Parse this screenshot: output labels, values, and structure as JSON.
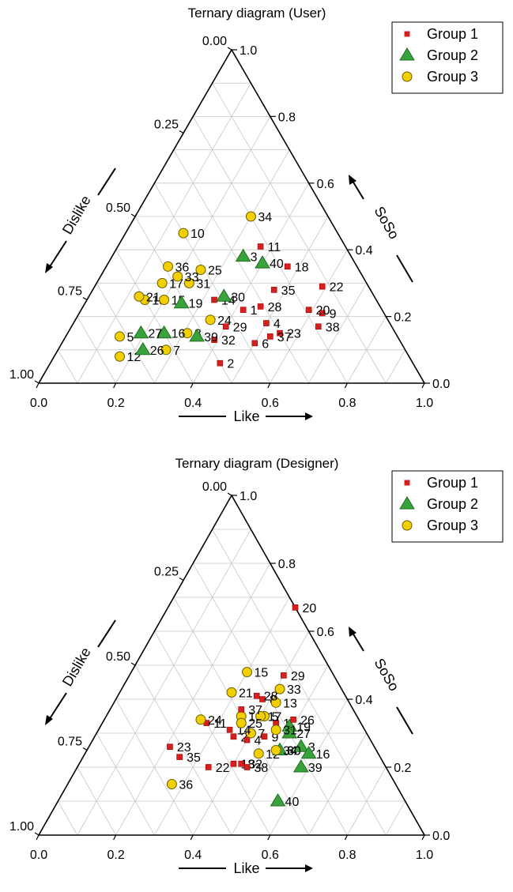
{
  "legend_labels": [
    "Group 1",
    "Group 2",
    "Group 3"
  ],
  "colors": {
    "group1": "#d62020",
    "group2": "#3aa23a",
    "group3": "#f2d000"
  },
  "ticks": {
    "bottom": [
      "0.0",
      "0.2",
      "0.4",
      "0.6",
      "0.8",
      "1.0"
    ],
    "right": [
      "0.0",
      "0.2",
      "0.4",
      "0.6",
      "0.8",
      "1.0"
    ],
    "left": [
      "0.00",
      "0.25",
      "0.50",
      "0.75",
      "1.00"
    ]
  },
  "axis_labels": {
    "bottom": "Like",
    "left": "Dislike",
    "right": "SoSo"
  },
  "chart_data": [
    {
      "type": "scatter",
      "subtype": "ternary",
      "title": "Ternary diagram (User)",
      "axes": [
        "Like",
        "Dislike",
        "SoSo"
      ],
      "points": [
        {
          "label": "1",
          "group": 1,
          "like": 0.42,
          "dislike": 0.36,
          "soso": 0.22
        },
        {
          "label": "2",
          "group": 1,
          "like": 0.44,
          "dislike": 0.5,
          "soso": 0.06
        },
        {
          "label": "3",
          "group": 2,
          "like": 0.34,
          "dislike": 0.28,
          "soso": 0.38
        },
        {
          "label": "4",
          "group": 1,
          "like": 0.5,
          "dislike": 0.32,
          "soso": 0.18
        },
        {
          "label": "5",
          "group": 3,
          "like": 0.14,
          "dislike": 0.72,
          "soso": 0.14
        },
        {
          "label": "6",
          "group": 1,
          "like": 0.5,
          "dislike": 0.38,
          "soso": 0.12
        },
        {
          "label": "7",
          "group": 3,
          "like": 0.28,
          "dislike": 0.62,
          "soso": 0.1
        },
        {
          "label": "8",
          "group": 3,
          "like": 0.31,
          "dislike": 0.54,
          "soso": 0.15
        },
        {
          "label": "9",
          "group": 1,
          "like": 0.63,
          "dislike": 0.16,
          "soso": 0.21
        },
        {
          "label": "10",
          "group": 3,
          "like": 0.15,
          "dislike": 0.4,
          "soso": 0.45
        },
        {
          "label": "11",
          "group": 1,
          "like": 0.37,
          "dislike": 0.22,
          "soso": 0.41
        },
        {
          "label": "12",
          "group": 3,
          "like": 0.17,
          "dislike": 0.75,
          "soso": 0.08
        },
        {
          "label": "13",
          "group": 3,
          "like": 0.15,
          "dislike": 0.6,
          "soso": 0.25
        },
        {
          "label": "14",
          "group": 1,
          "like": 0.33,
          "dislike": 0.42,
          "soso": 0.25
        },
        {
          "label": "15",
          "group": 3,
          "like": 0.2,
          "dislike": 0.55,
          "soso": 0.25
        },
        {
          "label": "16",
          "group": 2,
          "like": 0.25,
          "dislike": 0.6,
          "soso": 0.15
        },
        {
          "label": "17",
          "group": 3,
          "like": 0.17,
          "dislike": 0.53,
          "soso": 0.3
        },
        {
          "label": "18",
          "group": 1,
          "like": 0.47,
          "dislike": 0.18,
          "soso": 0.35
        },
        {
          "label": "19",
          "group": 2,
          "like": 0.25,
          "dislike": 0.51,
          "soso": 0.24
        },
        {
          "label": "20",
          "group": 1,
          "like": 0.59,
          "dislike": 0.19,
          "soso": 0.22
        },
        {
          "label": "21",
          "group": 3,
          "like": 0.13,
          "dislike": 0.61,
          "soso": 0.26
        },
        {
          "label": "22",
          "group": 1,
          "like": 0.59,
          "dislike": 0.12,
          "soso": 0.29
        },
        {
          "label": "23",
          "group": 1,
          "like": 0.55,
          "dislike": 0.3,
          "soso": 0.15
        },
        {
          "label": "24",
          "group": 3,
          "like": 0.35,
          "dislike": 0.46,
          "soso": 0.19
        },
        {
          "label": "25",
          "group": 3,
          "like": 0.25,
          "dislike": 0.41,
          "soso": 0.34
        },
        {
          "label": "26",
          "group": 2,
          "like": 0.22,
          "dislike": 0.68,
          "soso": 0.1
        },
        {
          "label": "27",
          "group": 2,
          "like": 0.19,
          "dislike": 0.66,
          "soso": 0.15
        },
        {
          "label": "28",
          "group": 1,
          "like": 0.46,
          "dislike": 0.31,
          "soso": 0.23
        },
        {
          "label": "29",
          "group": 1,
          "like": 0.4,
          "dislike": 0.43,
          "soso": 0.17
        },
        {
          "label": "30",
          "group": 2,
          "like": 0.35,
          "dislike": 0.39,
          "soso": 0.26
        },
        {
          "label": "31",
          "group": 3,
          "like": 0.24,
          "dislike": 0.46,
          "soso": 0.3
        },
        {
          "label": "32",
          "group": 1,
          "like": 0.39,
          "dislike": 0.48,
          "soso": 0.13
        },
        {
          "label": "33",
          "group": 3,
          "like": 0.2,
          "dislike": 0.48,
          "soso": 0.32
        },
        {
          "label": "34",
          "group": 3,
          "like": 0.3,
          "dislike": 0.2,
          "soso": 0.5
        },
        {
          "label": "35",
          "group": 1,
          "like": 0.47,
          "dislike": 0.25,
          "soso": 0.28
        },
        {
          "label": "36",
          "group": 3,
          "like": 0.16,
          "dislike": 0.49,
          "soso": 0.35
        },
        {
          "label": "37",
          "group": 1,
          "like": 0.53,
          "dislike": 0.33,
          "soso": 0.14
        },
        {
          "label": "38",
          "group": 1,
          "like": 0.64,
          "dislike": 0.19,
          "soso": 0.17
        },
        {
          "label": "39",
          "group": 2,
          "like": 0.34,
          "dislike": 0.52,
          "soso": 0.14
        },
        {
          "label": "40",
          "group": 2,
          "like": 0.4,
          "dislike": 0.24,
          "soso": 0.36
        }
      ]
    },
    {
      "type": "scatter",
      "subtype": "ternary",
      "title": "Ternary diagram (Designer)",
      "axes": [
        "Like",
        "Dislike",
        "SoSo"
      ],
      "points": [
        {
          "label": "1",
          "group": 1,
          "like": 0.45,
          "dislike": 0.22,
          "soso": 0.33
        },
        {
          "label": "2",
          "group": 1,
          "like": 0.36,
          "dislike": 0.35,
          "soso": 0.29
        },
        {
          "label": "3",
          "group": 2,
          "like": 0.55,
          "dislike": 0.19,
          "soso": 0.26
        },
        {
          "label": "4",
          "group": 1,
          "like": 0.4,
          "dislike": 0.32,
          "soso": 0.28
        },
        {
          "label": "5",
          "group": 3,
          "like": 0.41,
          "dislike": 0.24,
          "soso": 0.35
        },
        {
          "label": "6",
          "group": 1,
          "like": 0.5,
          "dislike": 0.25,
          "soso": 0.25
        },
        {
          "label": "7",
          "group": 3,
          "like": 0.4,
          "dislike": 0.3,
          "soso": 0.3
        },
        {
          "label": "8",
          "group": 1,
          "like": 0.38,
          "dislike": 0.22,
          "soso": 0.4
        },
        {
          "label": "9",
          "group": 1,
          "like": 0.44,
          "dislike": 0.27,
          "soso": 0.29
        },
        {
          "label": "10",
          "group": 3,
          "like": 0.35,
          "dislike": 0.3,
          "soso": 0.35
        },
        {
          "label": "11",
          "group": 1,
          "like": 0.27,
          "dislike": 0.4,
          "soso": 0.33
        },
        {
          "label": "12",
          "group": 3,
          "like": 0.45,
          "dislike": 0.31,
          "soso": 0.24
        },
        {
          "label": "13",
          "group": 3,
          "like": 0.42,
          "dislike": 0.19,
          "soso": 0.39
        },
        {
          "label": "14",
          "group": 1,
          "like": 0.34,
          "dislike": 0.35,
          "soso": 0.31
        },
        {
          "label": "15",
          "group": 3,
          "like": 0.3,
          "dislike": 0.22,
          "soso": 0.48
        },
        {
          "label": "16",
          "group": 2,
          "like": 0.58,
          "dislike": 0.18,
          "soso": 0.24
        },
        {
          "label": "17",
          "group": 3,
          "like": 0.4,
          "dislike": 0.25,
          "soso": 0.35
        },
        {
          "label": "18",
          "group": 1,
          "like": 0.4,
          "dislike": 0.39,
          "soso": 0.21
        },
        {
          "label": "19",
          "group": 2,
          "like": 0.49,
          "dislike": 0.19,
          "soso": 0.32
        },
        {
          "label": "20",
          "group": 1,
          "like": 0.33,
          "dislike": 0.0,
          "soso": 0.67
        },
        {
          "label": "21",
          "group": 3,
          "like": 0.29,
          "dislike": 0.29,
          "soso": 0.42
        },
        {
          "label": "22",
          "group": 1,
          "like": 0.34,
          "dislike": 0.46,
          "soso": 0.2
        },
        {
          "label": "23",
          "group": 1,
          "like": 0.21,
          "dislike": 0.53,
          "soso": 0.26
        },
        {
          "label": "24",
          "group": 3,
          "like": 0.25,
          "dislike": 0.41,
          "soso": 0.34
        },
        {
          "label": "25",
          "group": 3,
          "like": 0.36,
          "dislike": 0.31,
          "soso": 0.33
        },
        {
          "label": "26",
          "group": 1,
          "like": 0.49,
          "dislike": 0.17,
          "soso": 0.34
        },
        {
          "label": "27",
          "group": 2,
          "like": 0.5,
          "dislike": 0.2,
          "soso": 0.3
        },
        {
          "label": "28",
          "group": 1,
          "like": 0.36,
          "dislike": 0.23,
          "soso": 0.41
        },
        {
          "label": "29",
          "group": 1,
          "like": 0.4,
          "dislike": 0.13,
          "soso": 0.47
        },
        {
          "label": "30",
          "group": 2,
          "like": 0.5,
          "dislike": 0.25,
          "soso": 0.25
        },
        {
          "label": "31",
          "group": 3,
          "like": 0.46,
          "dislike": 0.23,
          "soso": 0.31
        },
        {
          "label": "32",
          "group": 1,
          "like": 0.42,
          "dislike": 0.37,
          "soso": 0.21
        },
        {
          "label": "33",
          "group": 3,
          "like": 0.41,
          "dislike": 0.16,
          "soso": 0.43
        },
        {
          "label": "34",
          "group": 3,
          "like": 0.49,
          "dislike": 0.26,
          "soso": 0.25
        },
        {
          "label": "35",
          "group": 1,
          "like": 0.25,
          "dislike": 0.52,
          "soso": 0.23
        },
        {
          "label": "36",
          "group": 3,
          "like": 0.27,
          "dislike": 0.58,
          "soso": 0.15
        },
        {
          "label": "37",
          "group": 1,
          "like": 0.34,
          "dislike": 0.29,
          "soso": 0.37
        },
        {
          "label": "38",
          "group": 1,
          "like": 0.44,
          "dislike": 0.36,
          "soso": 0.2
        },
        {
          "label": "39",
          "group": 2,
          "like": 0.58,
          "dislike": 0.22,
          "soso": 0.2
        },
        {
          "label": "40",
          "group": 2,
          "like": 0.57,
          "dislike": 0.33,
          "soso": 0.1
        }
      ]
    }
  ]
}
